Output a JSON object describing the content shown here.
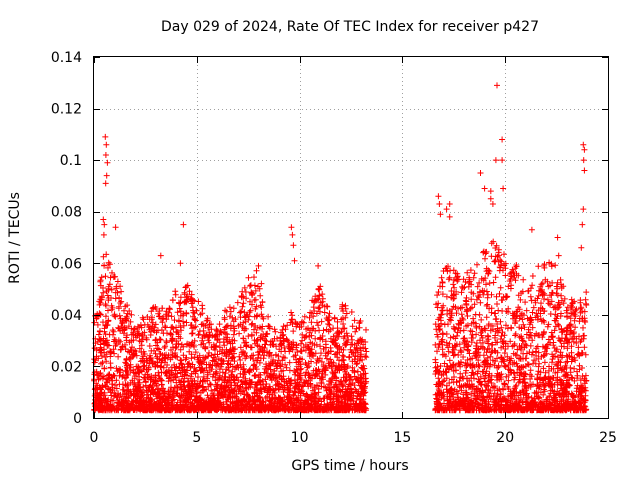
{
  "chart_data": {
    "type": "scatter",
    "title": "Day 029 of 2024, Rate Of TEC Index for receiver p427",
    "xlabel": "GPS time / hours",
    "ylabel": "ROTI / TECUs",
    "xlim": [
      0,
      25
    ],
    "ylim": [
      0,
      0.14
    ],
    "xticks": [
      0,
      5,
      10,
      15,
      20,
      25
    ],
    "xtick_labels": [
      "0",
      "5",
      "10",
      "15",
      "20",
      "25"
    ],
    "yticks": [
      0,
      0.02,
      0.04,
      0.06,
      0.08,
      0.1,
      0.12,
      0.14
    ],
    "ytick_labels": [
      "0",
      "0.02",
      "0.04",
      "0.06",
      "0.08",
      "0.1",
      "0.12",
      "0.14"
    ],
    "grid": true,
    "marker": "+",
    "series_color": "#ff0000",
    "coverage_segments": [
      [
        0,
        13.25
      ],
      [
        16.6,
        23.95
      ]
    ],
    "outliers": [
      {
        "x": 0.55,
        "y": 0.109
      },
      {
        "x": 0.6,
        "y": 0.106
      },
      {
        "x": 0.58,
        "y": 0.102
      },
      {
        "x": 0.65,
        "y": 0.099
      },
      {
        "x": 0.62,
        "y": 0.094
      },
      {
        "x": 0.57,
        "y": 0.091
      },
      {
        "x": 0.45,
        "y": 0.077
      },
      {
        "x": 0.5,
        "y": 0.075
      },
      {
        "x": 1.05,
        "y": 0.074
      },
      {
        "x": 0.48,
        "y": 0.071
      },
      {
        "x": 4.35,
        "y": 0.075
      },
      {
        "x": 3.25,
        "y": 0.063
      },
      {
        "x": 4.2,
        "y": 0.06
      },
      {
        "x": 9.6,
        "y": 0.074
      },
      {
        "x": 9.65,
        "y": 0.071
      },
      {
        "x": 9.7,
        "y": 0.067
      },
      {
        "x": 9.75,
        "y": 0.061
      },
      {
        "x": 10.9,
        "y": 0.059
      },
      {
        "x": 8.0,
        "y": 0.059
      },
      {
        "x": 16.75,
        "y": 0.086
      },
      {
        "x": 16.8,
        "y": 0.083
      },
      {
        "x": 16.85,
        "y": 0.079
      },
      {
        "x": 17.15,
        "y": 0.081
      },
      {
        "x": 17.3,
        "y": 0.083
      },
      {
        "x": 17.3,
        "y": 0.078
      },
      {
        "x": 18.8,
        "y": 0.095
      },
      {
        "x": 19.0,
        "y": 0.089
      },
      {
        "x": 19.3,
        "y": 0.088
      },
      {
        "x": 19.3,
        "y": 0.085
      },
      {
        "x": 19.4,
        "y": 0.083
      },
      {
        "x": 19.55,
        "y": 0.1
      },
      {
        "x": 19.6,
        "y": 0.129
      },
      {
        "x": 19.85,
        "y": 0.108
      },
      {
        "x": 19.85,
        "y": 0.1
      },
      {
        "x": 19.9,
        "y": 0.089
      },
      {
        "x": 21.3,
        "y": 0.073
      },
      {
        "x": 22.55,
        "y": 0.07
      },
      {
        "x": 22.6,
        "y": 0.063
      },
      {
        "x": 23.8,
        "y": 0.106
      },
      {
        "x": 23.85,
        "y": 0.104
      },
      {
        "x": 23.82,
        "y": 0.1
      },
      {
        "x": 23.85,
        "y": 0.096
      },
      {
        "x": 23.8,
        "y": 0.081
      },
      {
        "x": 23.75,
        "y": 0.075
      },
      {
        "x": 23.7,
        "y": 0.066
      }
    ],
    "envelope": [
      {
        "x": 0.0,
        "y": 0.038
      },
      {
        "x": 0.5,
        "y": 0.065
      },
      {
        "x": 1.0,
        "y": 0.058
      },
      {
        "x": 1.5,
        "y": 0.048
      },
      {
        "x": 2.0,
        "y": 0.036
      },
      {
        "x": 2.5,
        "y": 0.04
      },
      {
        "x": 3.0,
        "y": 0.045
      },
      {
        "x": 3.5,
        "y": 0.042
      },
      {
        "x": 4.0,
        "y": 0.05
      },
      {
        "x": 4.5,
        "y": 0.052
      },
      {
        "x": 5.0,
        "y": 0.048
      },
      {
        "x": 5.5,
        "y": 0.04
      },
      {
        "x": 6.0,
        "y": 0.035
      },
      {
        "x": 6.5,
        "y": 0.044
      },
      {
        "x": 7.0,
        "y": 0.045
      },
      {
        "x": 7.5,
        "y": 0.055
      },
      {
        "x": 8.0,
        "y": 0.058
      },
      {
        "x": 8.5,
        "y": 0.04
      },
      {
        "x": 9.0,
        "y": 0.032
      },
      {
        "x": 9.5,
        "y": 0.042
      },
      {
        "x": 10.0,
        "y": 0.038
      },
      {
        "x": 10.5,
        "y": 0.045
      },
      {
        "x": 11.0,
        "y": 0.052
      },
      {
        "x": 11.5,
        "y": 0.04
      },
      {
        "x": 12.0,
        "y": 0.045
      },
      {
        "x": 12.5,
        "y": 0.042
      },
      {
        "x": 13.25,
        "y": 0.035
      },
      {
        "x": 16.6,
        "y": 0.045
      },
      {
        "x": 17.0,
        "y": 0.062
      },
      {
        "x": 17.5,
        "y": 0.058
      },
      {
        "x": 18.0,
        "y": 0.055
      },
      {
        "x": 18.5,
        "y": 0.06
      },
      {
        "x": 19.0,
        "y": 0.065
      },
      {
        "x": 19.5,
        "y": 0.07
      },
      {
        "x": 20.0,
        "y": 0.065
      },
      {
        "x": 20.5,
        "y": 0.06
      },
      {
        "x": 21.0,
        "y": 0.055
      },
      {
        "x": 21.5,
        "y": 0.058
      },
      {
        "x": 22.0,
        "y": 0.062
      },
      {
        "x": 22.5,
        "y": 0.06
      },
      {
        "x": 23.0,
        "y": 0.048
      },
      {
        "x": 23.5,
        "y": 0.045
      },
      {
        "x": 23.95,
        "y": 0.05
      }
    ],
    "baseline_min": 0.003
  }
}
